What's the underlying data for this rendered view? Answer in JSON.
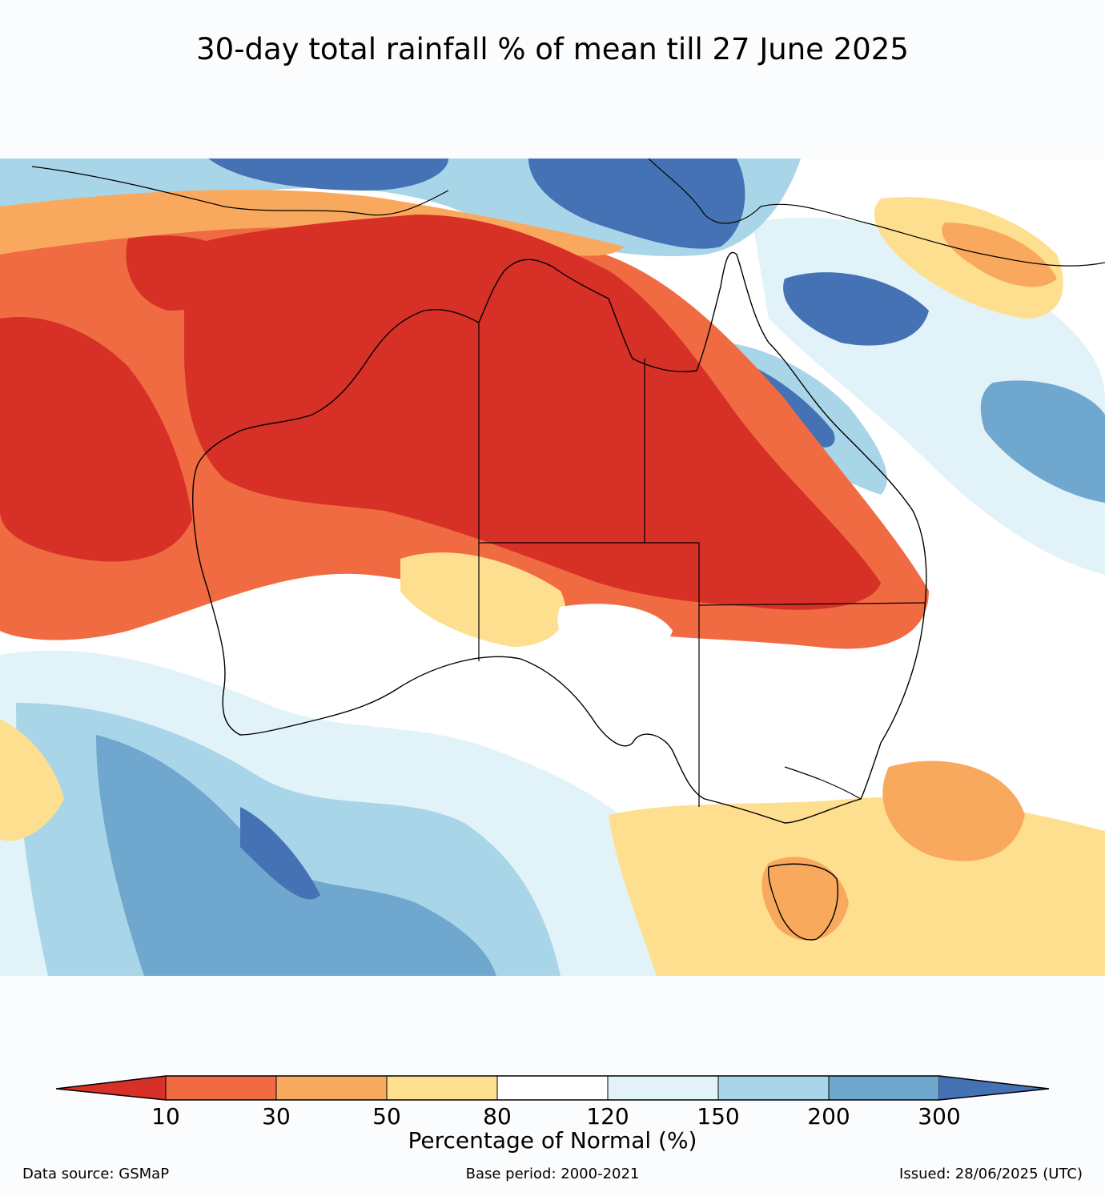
{
  "title": "30-day total rainfall % of mean till 27 June 2025",
  "legend": {
    "label": "Percentage of Normal (%)",
    "ticks": [
      "10",
      "30",
      "50",
      "80",
      "120",
      "150",
      "200",
      "300"
    ],
    "colors": [
      "#d73027",
      "#f06a42",
      "#f9a95d",
      "#fedf8f",
      "#ffffff",
      "#e1f3f8",
      "#a9d5e8",
      "#6fa7ce",
      "#4472b4"
    ]
  },
  "footer": {
    "source": "Data source: GSMaP",
    "base_period": "Base period: 2000-2021",
    "issued": "Issued: 28/06/2025 (UTC)"
  }
}
